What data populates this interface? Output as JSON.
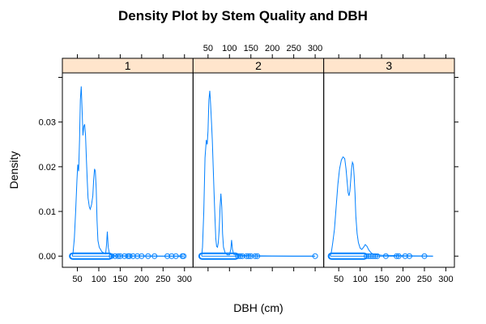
{
  "chart_data": {
    "type": "area",
    "title": "Density Plot by Stem Quality and DBH",
    "xlabel": "DBH (cm)",
    "ylabel": "Density",
    "xlim": [
      15,
      320
    ],
    "ylim": [
      -0.0025,
      0.041
    ],
    "x_ticks": [
      50,
      100,
      150,
      200,
      250,
      300
    ],
    "y_ticks": [
      0.0,
      0.01,
      0.02,
      0.03
    ],
    "y_tick_labels": [
      "0.00",
      "0.01",
      "0.02",
      "0.03"
    ],
    "panels": [
      {
        "label": "1",
        "x_axis": "bottom",
        "density": [
          [
            38,
            0
          ],
          [
            40,
            0.0008
          ],
          [
            43,
            0.004
          ],
          [
            46,
            0.01
          ],
          [
            49,
            0.017
          ],
          [
            51,
            0.0205
          ],
          [
            53,
            0.019
          ],
          [
            55,
            0.026
          ],
          [
            57,
            0.035
          ],
          [
            59,
            0.038
          ],
          [
            61,
            0.033
          ],
          [
            63,
            0.027
          ],
          [
            65,
            0.029
          ],
          [
            67,
            0.0295
          ],
          [
            69,
            0.027
          ],
          [
            71,
            0.022
          ],
          [
            73,
            0.017
          ],
          [
            75,
            0.013
          ],
          [
            78,
            0.011
          ],
          [
            80,
            0.0105
          ],
          [
            83,
            0.0115
          ],
          [
            86,
            0.0135
          ],
          [
            88,
            0.017
          ],
          [
            90,
            0.0195
          ],
          [
            92,
            0.019
          ],
          [
            94,
            0.015
          ],
          [
            96,
            0.008
          ],
          [
            98,
            0.0035
          ],
          [
            101,
            0.002
          ],
          [
            104,
            0.0015
          ],
          [
            107,
            0.001
          ],
          [
            110,
            0.0008
          ],
          [
            113,
            0.0006
          ],
          [
            116,
            0.0005
          ],
          [
            118,
            0.0025
          ],
          [
            120,
            0.0055
          ],
          [
            122,
            0.002
          ],
          [
            125,
            0.0005
          ],
          [
            130,
            0.0002
          ],
          [
            140,
            0.0001
          ],
          [
            160,
            5e-05
          ],
          [
            200,
            3e-05
          ],
          [
            250,
            1e-05
          ],
          [
            298,
            0
          ]
        ],
        "obs_dense": [
          38,
          125
        ],
        "obs": [
          130,
          138,
          145,
          150,
          160,
          168,
          172,
          180,
          190,
          200,
          215,
          230,
          260,
          270,
          280,
          295,
          298
        ]
      },
      {
        "label": "2",
        "x_axis": "top",
        "density": [
          [
            35,
            0
          ],
          [
            37,
            0.002
          ],
          [
            40,
            0.01
          ],
          [
            43,
            0.022
          ],
          [
            46,
            0.026
          ],
          [
            48,
            0.025
          ],
          [
            50,
            0.028
          ],
          [
            52,
            0.035
          ],
          [
            54,
            0.037
          ],
          [
            56,
            0.034
          ],
          [
            58,
            0.03
          ],
          [
            60,
            0.026
          ],
          [
            62,
            0.02
          ],
          [
            64,
            0.014
          ],
          [
            66,
            0.009
          ],
          [
            68,
            0.004
          ],
          [
            70,
            0.0022
          ],
          [
            72,
            0.002
          ],
          [
            74,
            0.003
          ],
          [
            76,
            0.006
          ],
          [
            78,
            0.011
          ],
          [
            80,
            0.014
          ],
          [
            82,
            0.011
          ],
          [
            84,
            0.005
          ],
          [
            86,
            0.002
          ],
          [
            90,
            0.0007
          ],
          [
            95,
            0.0003
          ],
          [
            100,
            0.0003
          ],
          [
            103,
            0.0015
          ],
          [
            105,
            0.0036
          ],
          [
            107,
            0.0015
          ],
          [
            110,
            0.0004
          ],
          [
            120,
            0.0002
          ],
          [
            150,
            0.0001
          ],
          [
            200,
            3e-05
          ],
          [
            250,
            1e-05
          ],
          [
            300,
            0
          ]
        ],
        "obs_dense": [
          35,
          115
        ],
        "obs": [
          120,
          125,
          130,
          140,
          145,
          150,
          160,
          165,
          300
        ]
      },
      {
        "label": "3",
        "x_axis": "bottom",
        "density": [
          [
            30,
            0
          ],
          [
            33,
            0.001
          ],
          [
            36,
            0.003
          ],
          [
            40,
            0.006
          ],
          [
            44,
            0.011
          ],
          [
            48,
            0.016
          ],
          [
            52,
            0.0195
          ],
          [
            56,
            0.0215
          ],
          [
            60,
            0.0222
          ],
          [
            64,
            0.0218
          ],
          [
            67,
            0.0195
          ],
          [
            70,
            0.0162
          ],
          [
            72,
            0.0142
          ],
          [
            74,
            0.0135
          ],
          [
            76,
            0.0145
          ],
          [
            78,
            0.017
          ],
          [
            80,
            0.0195
          ],
          [
            82,
            0.021
          ],
          [
            84,
            0.0205
          ],
          [
            86,
            0.018
          ],
          [
            88,
            0.014
          ],
          [
            90,
            0.009
          ],
          [
            93,
            0.005
          ],
          [
            96,
            0.003
          ],
          [
            100,
            0.0018
          ],
          [
            104,
            0.0015
          ],
          [
            108,
            0.002
          ],
          [
            112,
            0.0026
          ],
          [
            116,
            0.0022
          ],
          [
            120,
            0.0014
          ],
          [
            125,
            0.0008
          ],
          [
            130,
            0.0004
          ],
          [
            150,
            0.0002
          ],
          [
            200,
            0.0001
          ],
          [
            250,
            3e-05
          ],
          [
            270,
            0
          ]
        ],
        "obs_dense": [
          32,
          110
        ],
        "obs": [
          115,
          120,
          125,
          130,
          135,
          140,
          160,
          185,
          190,
          205,
          215,
          250
        ]
      }
    ],
    "line_color": "#0080ff",
    "strip_color": "#ffe5cc"
  }
}
